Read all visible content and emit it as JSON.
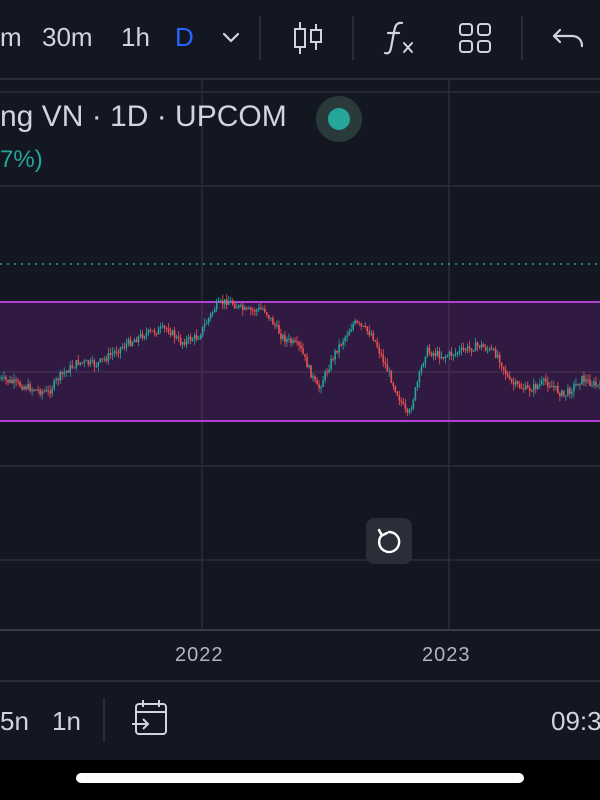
{
  "toolbar": {
    "timeframes": [
      "m",
      "30m",
      "1h",
      "D"
    ],
    "active_timeframe": "D",
    "icons": [
      "chevron-down-icon",
      "candlestick-icon",
      "indicators-fx-icon",
      "layout-grid-icon",
      "undo-icon"
    ]
  },
  "legend": {
    "title": "ng VN · 1D · UPCOM",
    "change": "7%)"
  },
  "x_axis": {
    "labels": [
      "2022",
      "2023"
    ]
  },
  "bottom": {
    "ranges": [
      "5n",
      "1n"
    ],
    "time": "09:3",
    "icons": [
      "calendar-goto-icon"
    ]
  },
  "colors": {
    "background": "#131722",
    "accent": "#2962ff",
    "up": "#26a69a",
    "down": "#ef5350",
    "channel": "#9c27b0"
  },
  "chart_data": {
    "type": "candlestick",
    "xlabels": [
      "2022",
      "2023"
    ],
    "series_shape": [
      [
        0,
        0.62
      ],
      [
        0.03,
        0.66
      ],
      [
        0.06,
        0.7
      ],
      [
        0.08,
        0.72
      ],
      [
        0.1,
        0.6
      ],
      [
        0.13,
        0.5
      ],
      [
        0.16,
        0.52
      ],
      [
        0.2,
        0.4
      ],
      [
        0.24,
        0.3
      ],
      [
        0.28,
        0.26
      ],
      [
        0.3,
        0.36
      ],
      [
        0.33,
        0.32
      ],
      [
        0.36,
        0.1
      ],
      [
        0.38,
        0.06
      ],
      [
        0.41,
        0.14
      ],
      [
        0.44,
        0.12
      ],
      [
        0.47,
        0.32
      ],
      [
        0.5,
        0.4
      ],
      [
        0.53,
        0.7
      ],
      [
        0.56,
        0.42
      ],
      [
        0.59,
        0.22
      ],
      [
        0.62,
        0.3
      ],
      [
        0.65,
        0.6
      ],
      [
        0.68,
        0.9
      ],
      [
        0.71,
        0.42
      ],
      [
        0.74,
        0.46
      ],
      [
        0.77,
        0.42
      ],
      [
        0.8,
        0.38
      ],
      [
        0.83,
        0.45
      ],
      [
        0.85,
        0.65
      ],
      [
        0.88,
        0.7
      ],
      [
        0.91,
        0.64
      ],
      [
        0.94,
        0.74
      ],
      [
        0.97,
        0.62
      ],
      [
        1.0,
        0.68
      ]
    ]
  }
}
